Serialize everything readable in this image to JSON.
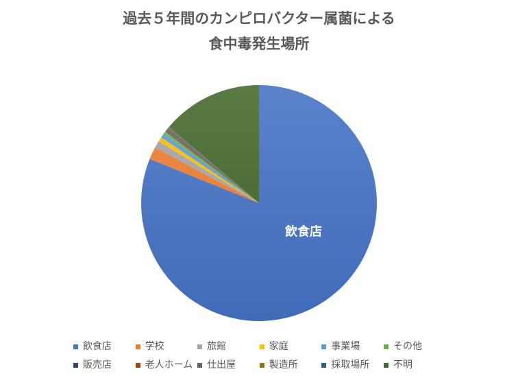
{
  "chart_data": {
    "type": "pie",
    "title": [
      "過去５年間のカンピロバクター属菌による",
      "食中毒発生場所"
    ],
    "categories": [
      "飲食店",
      "学校",
      "旅館",
      "家庭",
      "事業場",
      "その他",
      "販売店",
      "老人ホーム",
      "仕出屋",
      "製造所",
      "採取場所",
      "不明"
    ],
    "values": [
      81.1,
      1.7,
      1.0,
      0.6,
      0.6,
      0.4,
      0.1,
      0.1,
      0.4,
      0.1,
      0.1,
      13.8
    ],
    "colors": [
      "#4472C4",
      "#ED7D31",
      "#A5A5A5",
      "#FFC000",
      "#5B9BD5",
      "#70AD47",
      "#264478",
      "#9E480E",
      "#636363",
      "#997300",
      "#255E91",
      "#43682B"
    ],
    "data_labels": [
      "飲食店"
    ],
    "legend": "bottom"
  }
}
